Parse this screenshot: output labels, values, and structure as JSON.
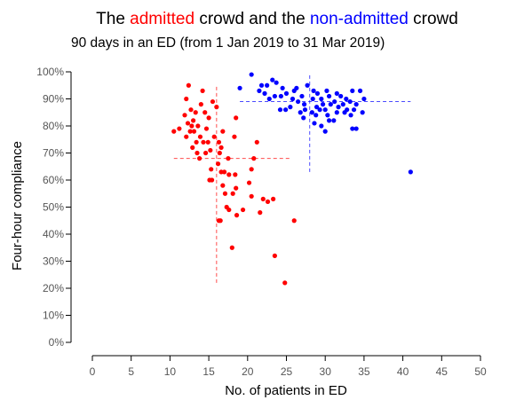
{
  "chart_data": {
    "type": "scatter",
    "title": {
      "prefix": "The ",
      "part1": "admitted",
      "middle": " crowd and the ",
      "part2": "non-admitted",
      "suffix": " crowd"
    },
    "subtitle": "90 days in an ED (from 1 Jan 2019 to 31 Mar 2019)",
    "xlabel": "No. of patients in ED",
    "ylabel": "Four-hour compliance",
    "xlim": [
      0,
      50
    ],
    "ylim": [
      0,
      1
    ],
    "x_ticks": [
      0,
      5,
      10,
      15,
      20,
      25,
      30,
      35,
      40,
      45,
      50
    ],
    "x_tick_labels": [
      "0",
      "5",
      "10",
      "15",
      "20",
      "25",
      "30",
      "35",
      "40",
      "45",
      "50"
    ],
    "y_ticks": [
      0,
      0.1,
      0.2,
      0.3,
      0.4,
      0.5,
      0.6,
      0.7,
      0.8,
      0.9,
      1.0
    ],
    "y_tick_labels": [
      "0%",
      "10%",
      "20%",
      "30%",
      "40%",
      "50%",
      "60%",
      "70%",
      "80%",
      "90%",
      "100%"
    ],
    "grid": false,
    "legend": "none",
    "series": [
      {
        "color": "#ff0000",
        "median_x": 16.0,
        "median_y": 0.68,
        "median_x_range": [
          0.22,
          0.95
        ],
        "median_y_range": [
          10.5,
          25.5
        ],
        "points": [
          [
            12.4,
            0.95
          ],
          [
            14.2,
            0.93
          ],
          [
            12.1,
            0.9
          ],
          [
            14.0,
            0.88
          ],
          [
            15.5,
            0.89
          ],
          [
            12.7,
            0.86
          ],
          [
            13.3,
            0.85
          ],
          [
            11.9,
            0.84
          ],
          [
            14.5,
            0.85
          ],
          [
            16.0,
            0.87
          ],
          [
            13.0,
            0.82
          ],
          [
            12.3,
            0.81
          ],
          [
            15.0,
            0.83
          ],
          [
            18.5,
            0.83
          ],
          [
            13.6,
            0.8
          ],
          [
            12.8,
            0.8
          ],
          [
            11.2,
            0.79
          ],
          [
            10.5,
            0.78
          ],
          [
            12.6,
            0.78
          ],
          [
            13.1,
            0.78
          ],
          [
            14.7,
            0.79
          ],
          [
            16.8,
            0.78
          ],
          [
            13.9,
            0.76
          ],
          [
            15.7,
            0.76
          ],
          [
            12.1,
            0.76
          ],
          [
            13.4,
            0.74
          ],
          [
            14.3,
            0.74
          ],
          [
            14.9,
            0.74
          ],
          [
            16.3,
            0.74
          ],
          [
            18.3,
            0.76
          ],
          [
            21.2,
            0.74
          ],
          [
            12.9,
            0.72
          ],
          [
            15.2,
            0.71
          ],
          [
            16.6,
            0.72
          ],
          [
            13.5,
            0.7
          ],
          [
            14.6,
            0.7
          ],
          [
            16.4,
            0.7
          ],
          [
            13.8,
            0.68
          ],
          [
            16.2,
            0.66
          ],
          [
            17.5,
            0.68
          ],
          [
            20.8,
            0.68
          ],
          [
            15.3,
            0.64
          ],
          [
            16.6,
            0.63
          ],
          [
            17.0,
            0.63
          ],
          [
            17.6,
            0.62
          ],
          [
            18.4,
            0.62
          ],
          [
            20.5,
            0.64
          ],
          [
            15.1,
            0.6
          ],
          [
            15.4,
            0.6
          ],
          [
            16.8,
            0.58
          ],
          [
            18.5,
            0.57
          ],
          [
            20.2,
            0.59
          ],
          [
            17.1,
            0.55
          ],
          [
            18.1,
            0.55
          ],
          [
            20.5,
            0.54
          ],
          [
            22.0,
            0.53
          ],
          [
            22.6,
            0.52
          ],
          [
            23.3,
            0.53
          ],
          [
            17.3,
            0.5
          ],
          [
            17.6,
            0.49
          ],
          [
            19.4,
            0.49
          ],
          [
            16.3,
            0.45
          ],
          [
            16.5,
            0.45
          ],
          [
            18.6,
            0.47
          ],
          [
            21.6,
            0.48
          ],
          [
            26.0,
            0.45
          ],
          [
            18.0,
            0.35
          ],
          [
            23.5,
            0.32
          ],
          [
            24.8,
            0.22
          ]
        ]
      },
      {
        "color": "#0000ff",
        "median_x": 28.0,
        "median_y": 0.89,
        "median_x_range": [
          0.63,
          0.99
        ],
        "median_y_range": [
          19.0,
          41.0
        ],
        "points": [
          [
            20.5,
            0.99
          ],
          [
            23.2,
            0.97
          ],
          [
            22.5,
            0.95
          ],
          [
            23.7,
            0.96
          ],
          [
            21.8,
            0.95
          ],
          [
            19.0,
            0.94
          ],
          [
            24.5,
            0.94
          ],
          [
            26.3,
            0.94
          ],
          [
            27.7,
            0.95
          ],
          [
            21.5,
            0.93
          ],
          [
            22.2,
            0.92
          ],
          [
            25.0,
            0.92
          ],
          [
            26.0,
            0.93
          ],
          [
            28.5,
            0.93
          ],
          [
            30.2,
            0.93
          ],
          [
            31.5,
            0.92
          ],
          [
            33.5,
            0.93
          ],
          [
            34.5,
            0.93
          ],
          [
            23.5,
            0.91
          ],
          [
            24.3,
            0.91
          ],
          [
            27.0,
            0.91
          ],
          [
            29.0,
            0.92
          ],
          [
            30.5,
            0.91
          ],
          [
            32.0,
            0.91
          ],
          [
            32.7,
            0.9
          ],
          [
            35.0,
            0.9
          ],
          [
            22.8,
            0.9
          ],
          [
            25.8,
            0.9
          ],
          [
            28.4,
            0.9
          ],
          [
            29.5,
            0.9
          ],
          [
            31.2,
            0.89
          ],
          [
            33.2,
            0.89
          ],
          [
            26.5,
            0.89
          ],
          [
            27.3,
            0.88
          ],
          [
            29.7,
            0.88
          ],
          [
            30.7,
            0.88
          ],
          [
            32.3,
            0.88
          ],
          [
            34.0,
            0.88
          ],
          [
            25.5,
            0.87
          ],
          [
            28.9,
            0.87
          ],
          [
            31.7,
            0.87
          ],
          [
            27.4,
            0.86
          ],
          [
            29.3,
            0.86
          ],
          [
            30.0,
            0.86
          ],
          [
            32.8,
            0.86
          ],
          [
            24.2,
            0.86
          ],
          [
            24.9,
            0.86
          ],
          [
            26.8,
            0.85
          ],
          [
            28.3,
            0.85
          ],
          [
            31.5,
            0.85
          ],
          [
            32.5,
            0.85
          ],
          [
            33.7,
            0.86
          ],
          [
            34.8,
            0.85
          ],
          [
            28.8,
            0.84
          ],
          [
            30.3,
            0.84
          ],
          [
            33.3,
            0.84
          ],
          [
            27.2,
            0.83
          ],
          [
            30.5,
            0.82
          ],
          [
            31.1,
            0.82
          ],
          [
            28.6,
            0.81
          ],
          [
            29.5,
            0.8
          ],
          [
            33.5,
            0.79
          ],
          [
            34.0,
            0.79
          ],
          [
            30.0,
            0.78
          ],
          [
            41.0,
            0.63
          ]
        ]
      }
    ]
  }
}
